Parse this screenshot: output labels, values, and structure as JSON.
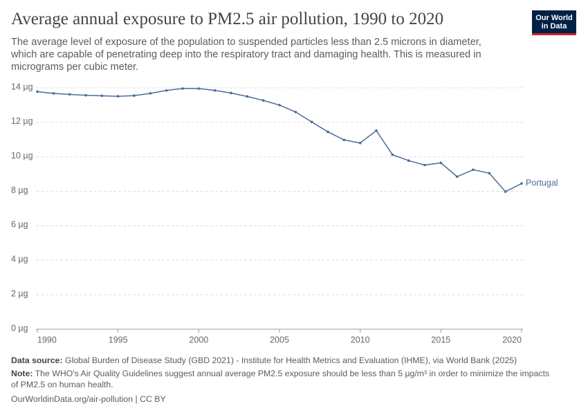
{
  "chart_data": {
    "type": "line",
    "title": "Average annual exposure to PM2.5 air pollution, 1990 to 2020",
    "subtitle": "The average level of exposure of the population to suspended particles less than 2.5 microns in diameter, which are capable of penetrating deep into the respiratory tract and damaging health. This is measured in micrograms per cubic meter.",
    "logo": "Our World in Data",
    "source_label": "Data source:",
    "source": "Global Burden of Disease Study (GBD 2021) - Institute for Health Metrics and Evaluation (IHME), via World Bank (2025)",
    "note_label": "Note:",
    "note": "The WHO's Air Quality Guidelines suggest annual average PM2.5 exposure should be less than 5 µg/m³ in order to minimize the impacts of PM2.5 on human health.",
    "url": "OurWorldinData.org/air-pollution | CC BY",
    "x": [
      1990,
      1991,
      1992,
      1993,
      1994,
      1995,
      1996,
      1997,
      1998,
      1999,
      2000,
      2001,
      2002,
      2003,
      2004,
      2005,
      2006,
      2007,
      2008,
      2009,
      2010,
      2011,
      2012,
      2013,
      2014,
      2015,
      2016,
      2017,
      2018,
      2019,
      2020
    ],
    "series": [
      {
        "name": "Portugal",
        "color": "#4c6a9c",
        "values": [
          13.78,
          13.68,
          13.62,
          13.57,
          13.54,
          13.51,
          13.55,
          13.68,
          13.85,
          13.96,
          13.96,
          13.85,
          13.7,
          13.5,
          13.27,
          13.0,
          12.6,
          12.02,
          11.45,
          10.98,
          10.8,
          11.52,
          10.12,
          9.78,
          9.52,
          9.65,
          8.85,
          9.25,
          9.05,
          7.98,
          8.45
        ]
      }
    ],
    "xlim": [
      1990,
      2020
    ],
    "xticks": [
      1990,
      1995,
      2000,
      2005,
      2010,
      2015,
      2020
    ],
    "ylim": [
      0,
      14
    ],
    "yticks": [
      {
        "value": 0,
        "label": "0 µg"
      },
      {
        "value": 2,
        "label": "2 µg"
      },
      {
        "value": 4,
        "label": "4 µg"
      },
      {
        "value": 6,
        "label": "6 µg"
      },
      {
        "value": 8,
        "label": "8 µg"
      },
      {
        "value": 10,
        "label": "10 µg"
      },
      {
        "value": 12,
        "label": "12 µg"
      },
      {
        "value": 14,
        "label": "14 µg"
      }
    ],
    "grid": true
  }
}
